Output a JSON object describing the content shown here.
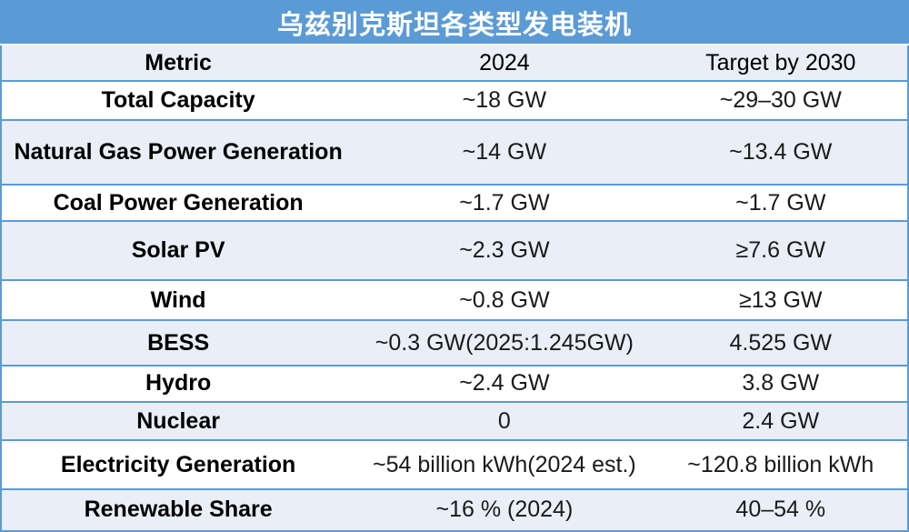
{
  "colors": {
    "title_bg": "#5B9BD5",
    "row_alt_bg": "#E9EEF7",
    "border_blue": "#5B9BD5",
    "title_text": "#FFFFFF",
    "body_text": "#1A1A1A"
  },
  "chart_data": {
    "type": "table",
    "title": "乌兹别克斯坦各类型发电装机",
    "columns": [
      "Metric",
      "2024",
      "Target by 2030"
    ],
    "rows": [
      [
        "Total Capacity",
        "~18 GW",
        "~29–30 GW"
      ],
      [
        "Natural Gas Power Generation",
        "~14 GW",
        "~13.4 GW"
      ],
      [
        "Coal Power Generation",
        "~1.7 GW",
        "~1.7 GW"
      ],
      [
        "Solar PV",
        "~2.3 GW",
        "≥7.6 GW"
      ],
      [
        "Wind",
        "~0.8 GW",
        "≥13 GW"
      ],
      [
        "BESS",
        "~0.3 GW(2025:1.245GW)",
        "4.525 GW"
      ],
      [
        "Hydro",
        "~2.4 GW",
        "3.8 GW"
      ],
      [
        "Nuclear",
        "0",
        "2.4 GW"
      ],
      [
        "Electricity Generation",
        "~54 billion kWh(2024 est.)",
        "~120.8 billion kWh"
      ],
      [
        "Renewable Share",
        "~16 % (2024)",
        "40–54 %"
      ]
    ],
    "layout_hints": {
      "column_alignment": "center",
      "alternating_rows": true,
      "grid": "horizontal-rules-only"
    }
  }
}
